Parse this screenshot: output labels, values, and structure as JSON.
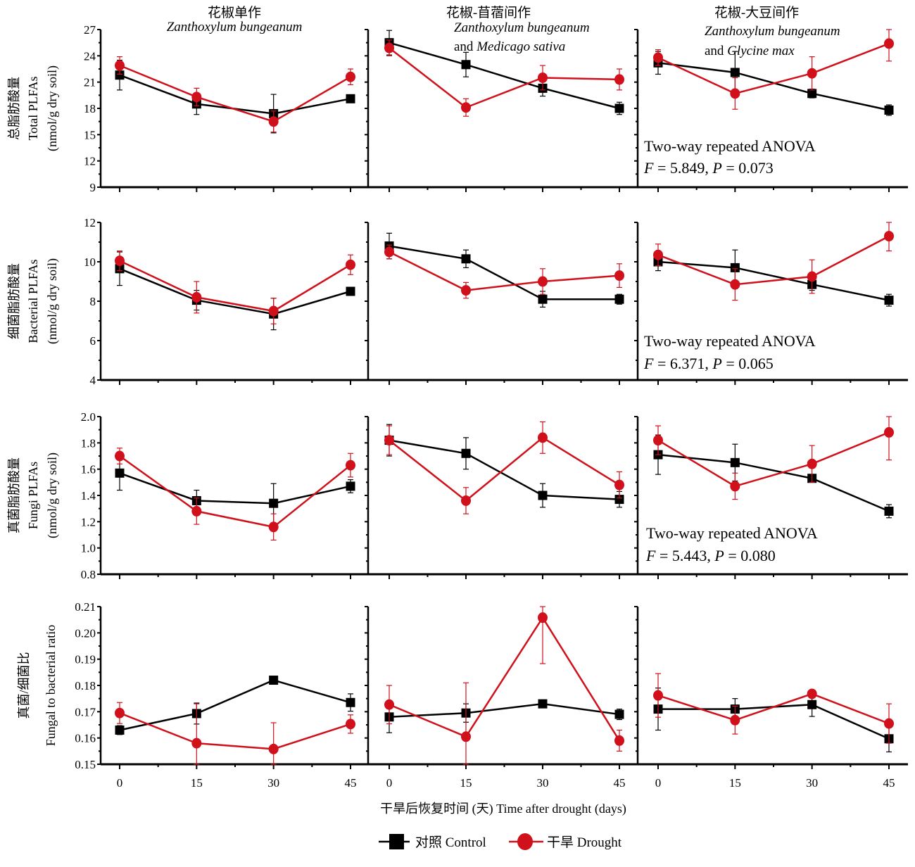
{
  "figure": {
    "x_title": "干旱后恢复时间 (天)  Time after drought (days)",
    "legend": [
      {
        "name": "对照 Control",
        "color": "#000000",
        "marker": "square"
      },
      {
        "name": "干旱 Drought",
        "color": "#d0101a",
        "marker": "circle"
      }
    ],
    "columns": [
      {
        "cn": "花椒单作",
        "line1": "Zanthoxylum bungeanum",
        "line2_plain": "",
        "line2_italic": ""
      },
      {
        "cn": "花椒-苜蓿间作",
        "line1": "Zanthoxylum bungeanum",
        "line2_plain": "and ",
        "line2_italic": "Medicago sativa"
      },
      {
        "cn": "花椒-大豆间作",
        "line1": "Zanthoxylum bungeanum",
        "line2_plain": "and ",
        "line2_italic": "Glycine max"
      }
    ]
  },
  "chart_data": [
    {
      "type": "line",
      "row_label": [
        "总脂肪酸量",
        "Total PLFAs",
        "(nmol/g dry soil)"
      ],
      "x": [
        0,
        15,
        30,
        45
      ],
      "xticks": [
        "0",
        "15",
        "30",
        "45"
      ],
      "ylim": [
        9,
        27
      ],
      "yticks": [
        "9",
        "12",
        "15",
        "18",
        "21",
        "24",
        "27"
      ],
      "ytick_values": [
        9,
        12,
        15,
        18,
        21,
        24,
        27
      ],
      "anova": {
        "title": "Two-way  repeated ANOVA",
        "F": "5.849",
        "P": "0.073"
      },
      "panels": [
        {
          "series": [
            {
              "name": "Control",
              "values": [
                21.8,
                18.5,
                17.4,
                19.1
              ],
              "err": [
                1.7,
                1.2,
                2.2,
                0.4
              ]
            },
            {
              "name": "Drought",
              "values": [
                22.9,
                19.3,
                16.5,
                21.6
              ],
              "err": [
                1.0,
                1.0,
                1.2,
                0.9
              ]
            }
          ]
        },
        {
          "series": [
            {
              "name": "Control",
              "values": [
                25.5,
                23.0,
                20.3,
                18.0
              ],
              "err": [
                1.4,
                1.4,
                0.9,
                0.7
              ]
            },
            {
              "name": "Drought",
              "values": [
                24.9,
                18.1,
                21.5,
                21.3
              ],
              "err": [
                0.9,
                1.0,
                1.4,
                1.2
              ]
            }
          ]
        },
        {
          "series": [
            {
              "name": "Control",
              "values": [
                23.2,
                22.1,
                19.7,
                17.8
              ],
              "err": [
                1.3,
                2.4,
                0.5,
                0.6
              ]
            },
            {
              "name": "Drought",
              "values": [
                23.8,
                19.7,
                22.0,
                25.4
              ],
              "err": [
                0.9,
                1.8,
                1.9,
                2.0
              ]
            }
          ]
        }
      ]
    },
    {
      "type": "line",
      "row_label": [
        "细菌脂肪酸量",
        "Bacterial PLFAs",
        "(nmol/g dry soil)"
      ],
      "x": [
        0,
        15,
        30,
        45
      ],
      "xticks": [
        "0",
        "15",
        "30",
        "45"
      ],
      "ylim": [
        4,
        12
      ],
      "yticks": [
        "4",
        "6",
        "8",
        "10",
        "12"
      ],
      "ytick_values": [
        4,
        6,
        8,
        10,
        12
      ],
      "anova": {
        "title": "Two-way  repeated ANOVA",
        "F": "6.371",
        "P": "0.065"
      },
      "panels": [
        {
          "series": [
            {
              "name": "Control",
              "values": [
                9.65,
                8.05,
                7.35,
                8.5
              ],
              "err": [
                0.85,
                0.5,
                0.8,
                0.15
              ]
            },
            {
              "name": "Drought",
              "values": [
                10.05,
                8.2,
                7.5,
                9.85
              ],
              "err": [
                0.5,
                0.8,
                0.65,
                0.5
              ]
            }
          ]
        },
        {
          "series": [
            {
              "name": "Control",
              "values": [
                10.8,
                10.15,
                8.1,
                8.1
              ],
              "err": [
                0.65,
                0.45,
                0.4,
                0.25
              ]
            },
            {
              "name": "Drought",
              "values": [
                10.5,
                8.55,
                9.0,
                9.3
              ],
              "err": [
                0.35,
                0.4,
                0.65,
                0.6
              ]
            }
          ]
        },
        {
          "series": [
            {
              "name": "Control",
              "values": [
                10.0,
                9.7,
                8.85,
                8.05
              ],
              "err": [
                0.45,
                0.9,
                0.3,
                0.3
              ]
            },
            {
              "name": "Drought",
              "values": [
                10.35,
                8.85,
                9.25,
                11.3
              ],
              "err": [
                0.55,
                0.8,
                0.85,
                0.75
              ]
            }
          ]
        }
      ]
    },
    {
      "type": "line",
      "row_label": [
        "真菌脂肪酸量",
        "Fungi PLFAs",
        "(nmol/g dry soil)"
      ],
      "x": [
        0,
        15,
        30,
        45
      ],
      "xticks": [
        "0",
        "15",
        "30",
        "45"
      ],
      "ylim": [
        0.8,
        2.0
      ],
      "yticks": [
        "0.8",
        "1.0",
        "1.2",
        "1.4",
        "1.6",
        "1.8",
        "2.0"
      ],
      "ytick_values": [
        0.8,
        1.0,
        1.2,
        1.4,
        1.6,
        1.8,
        2.0
      ],
      "anova": {
        "title": "Two-way  repeated ANOVA",
        "F": "5.443",
        "P": "0.080"
      },
      "panels": [
        {
          "series": [
            {
              "name": "Control",
              "values": [
                1.57,
                1.36,
                1.34,
                1.47
              ],
              "err": [
                0.13,
                0.08,
                0.15,
                0.05
              ]
            },
            {
              "name": "Drought",
              "values": [
                1.7,
                1.28,
                1.16,
                1.63
              ],
              "err": [
                0.06,
                0.1,
                0.1,
                0.09
              ]
            }
          ]
        },
        {
          "series": [
            {
              "name": "Control",
              "values": [
                1.82,
                1.72,
                1.4,
                1.37
              ],
              "err": [
                0.12,
                0.12,
                0.09,
                0.06
              ]
            },
            {
              "name": "Drought",
              "values": [
                1.82,
                1.36,
                1.84,
                1.48
              ],
              "err": [
                0.11,
                0.1,
                0.12,
                0.1
              ]
            }
          ]
        },
        {
          "series": [
            {
              "name": "Control",
              "values": [
                1.71,
                1.65,
                1.53,
                1.28
              ],
              "err": [
                0.15,
                0.14,
                0.02,
                0.05
              ]
            },
            {
              "name": "Drought",
              "values": [
                1.82,
                1.47,
                1.64,
                1.88
              ],
              "err": [
                0.11,
                0.1,
                0.14,
                0.21
              ]
            }
          ]
        }
      ]
    },
    {
      "type": "line",
      "row_label": [
        "真菌/细菌比",
        "Fungal to bacterial ratio"
      ],
      "x": [
        0,
        15,
        30,
        45
      ],
      "xticks": [
        "0",
        "15",
        "30",
        "45"
      ],
      "ylim": [
        0.15,
        0.21
      ],
      "yticks": [
        "0.15",
        "0.16",
        "0.17",
        "0.18",
        "0.19",
        "0.20",
        "0.21"
      ],
      "ytick_values": [
        0.15,
        0.16,
        0.17,
        0.18,
        0.19,
        0.2,
        0.21
      ],
      "anova": null,
      "panels": [
        {
          "series": [
            {
              "name": "Control",
              "values": [
                0.163,
                0.1693,
                0.182,
                0.1735
              ],
              "err": [
                0.0017,
                0.004,
                0.0005,
                0.0033
              ]
            },
            {
              "name": "Drought",
              "values": [
                0.1695,
                0.158,
                0.1558,
                0.1653
              ],
              "err": [
                0.004,
                0.015,
                0.01,
                0.0035
              ]
            }
          ]
        },
        {
          "series": [
            {
              "name": "Control",
              "values": [
                0.168,
                0.1695,
                0.173,
                0.169
              ],
              "err": [
                0.006,
                0.0035,
                0.0015,
                0.002
              ]
            },
            {
              "name": "Drought",
              "values": [
                0.1727,
                0.1605,
                0.2058,
                0.159
              ],
              "err": [
                0.0073,
                0.0205,
                0.0175,
                0.004
              ]
            }
          ]
        },
        {
          "series": [
            {
              "name": "Control",
              "values": [
                0.171,
                0.171,
                0.1727,
                0.1597
              ],
              "err": [
                0.008,
                0.004,
                0.0045,
                0.005
              ]
            },
            {
              "name": "Drought",
              "values": [
                0.1762,
                0.1668,
                0.1768,
                0.1655
              ],
              "err": [
                0.0083,
                0.0053,
                0.0003,
                0.0075
              ]
            }
          ]
        }
      ]
    }
  ]
}
